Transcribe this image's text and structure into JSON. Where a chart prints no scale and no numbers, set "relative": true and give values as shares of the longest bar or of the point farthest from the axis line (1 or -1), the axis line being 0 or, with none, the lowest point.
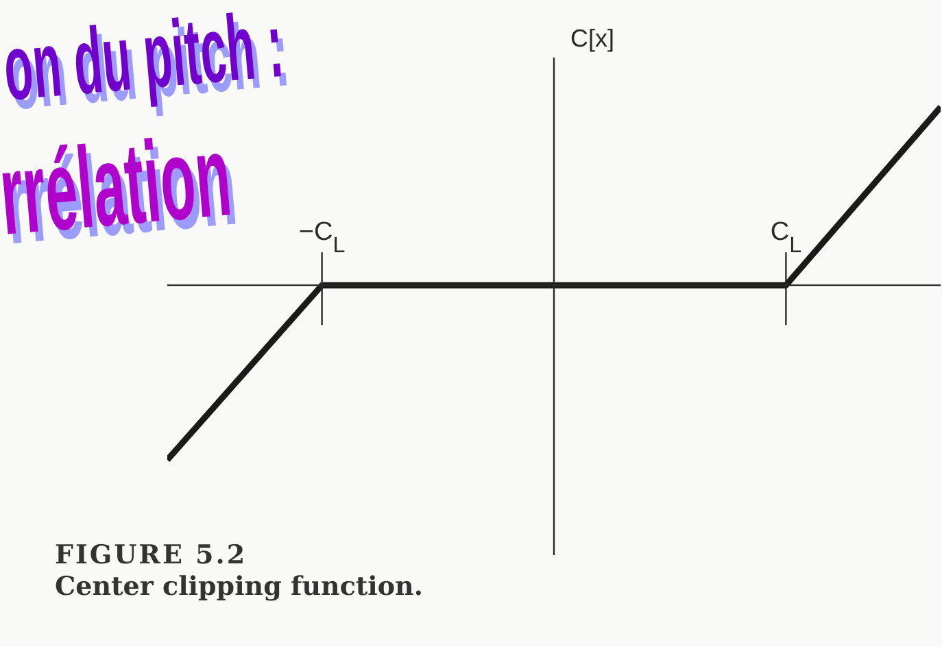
{
  "chart_data": {
    "type": "line",
    "title": "FIGURE 5.2",
    "subtitle": "Center clipping function.",
    "ylabel": "C[x]",
    "annotations": [
      "on du pitch :",
      "rrélation"
    ],
    "categories": [
      null,
      "−C$_{L}$",
      null,
      null,
      "C$_{L}$",
      null
    ],
    "series": [
      {
        "color": "#1a1a1a",
        "values": [
          -0.98,
          0,
          0,
          0,
          0,
          1
        ]
      }
    ],
    "relative": true
  }
}
